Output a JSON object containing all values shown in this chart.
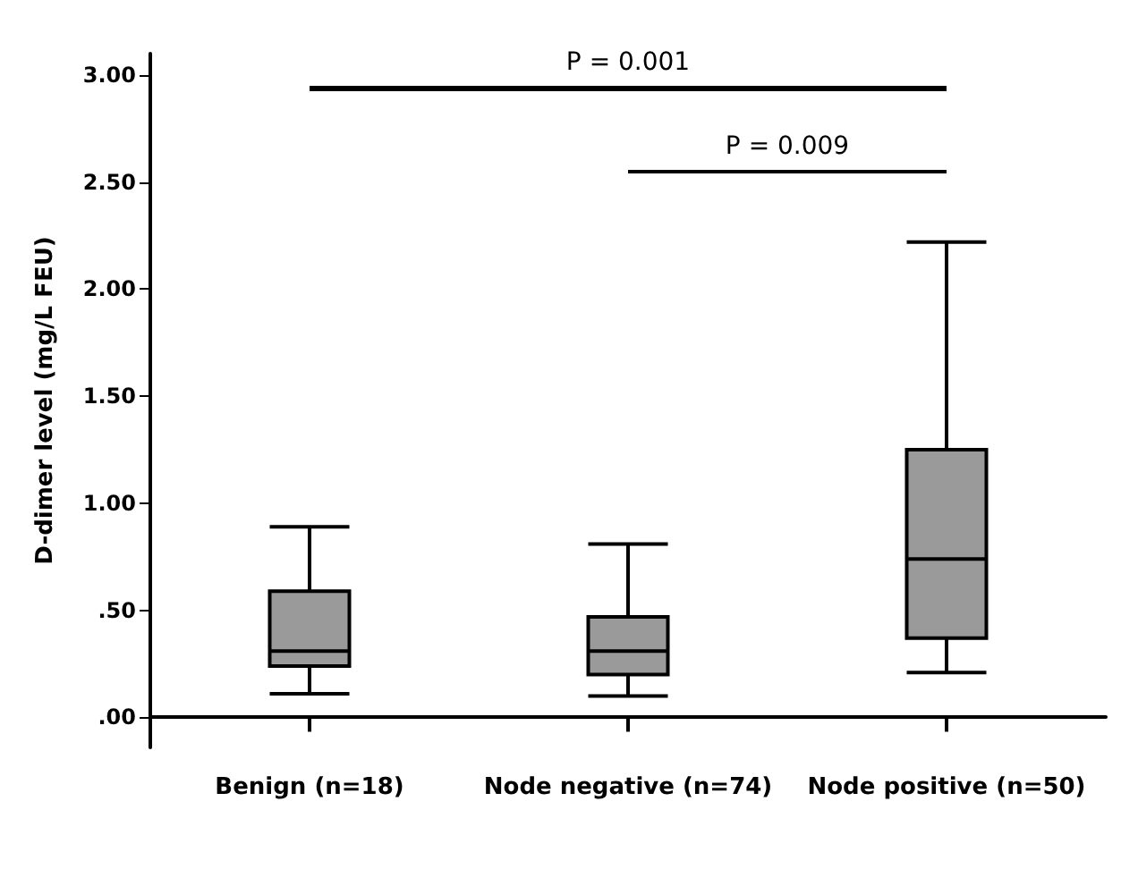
{
  "chart_data": {
    "type": "box",
    "ylabel": "D-dimer level (mg/L FEU)",
    "categories": [
      "Benign (n=18)",
      "Node negative (n=74)",
      "Node positive (n=50)"
    ],
    "color": "#9a9a9a",
    "boxes": [
      {
        "low": 0.11,
        "q1": 0.24,
        "median": 0.31,
        "q3": 0.59,
        "high": 0.89
      },
      {
        "low": 0.1,
        "q1": 0.2,
        "median": 0.31,
        "q3": 0.47,
        "high": 0.81
      },
      {
        "low": 0.21,
        "q1": 0.37,
        "median": 0.74,
        "q3": 1.25,
        "high": 2.22
      }
    ],
    "ylim": [
      -0.14,
      3.1
    ],
    "yticks": [
      {
        "value": 0,
        "label": ".00"
      },
      {
        "value": 0.5,
        "label": ".50"
      },
      {
        "value": 1,
        "label": "1.00"
      },
      {
        "value": 1.5,
        "label": "1.50"
      },
      {
        "value": 2,
        "label": "2.00"
      },
      {
        "value": 2.5,
        "label": "2.50"
      },
      {
        "value": 3,
        "label": "3.00"
      }
    ],
    "grid": false,
    "annotations": [
      "P = 0.001",
      "P = 0.009"
    ]
  }
}
